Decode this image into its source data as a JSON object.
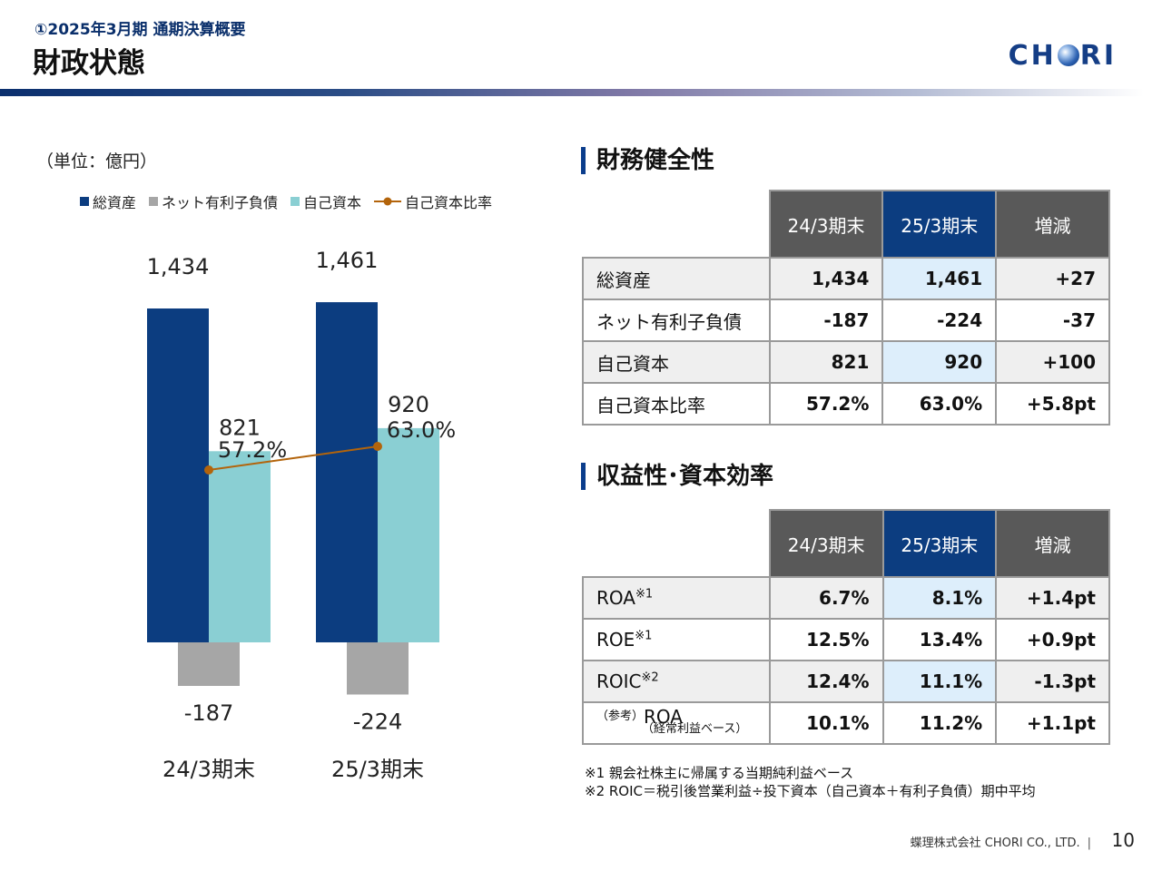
{
  "header": {
    "subtitle": "①2025年3月期 通期決算概要",
    "title": "財政状態",
    "logo_pre": "CH",
    "logo_post": "RI"
  },
  "chart": {
    "unit": "（単位：億円）",
    "legend": [
      "総資産",
      "ネット有利子負債",
      "自己資本",
      "自己資本比率"
    ]
  },
  "chart_data": {
    "type": "bar",
    "categories": [
      "24/3期末",
      "25/3期末"
    ],
    "series": [
      {
        "name": "総資産",
        "values": [
          1434,
          1461
        ],
        "labels": [
          "1,434",
          "1,461"
        ],
        "color": "#0c3d80"
      },
      {
        "name": "ネット有利子負債",
        "values": [
          -187,
          -224
        ],
        "labels": [
          "-187",
          "-224"
        ],
        "color": "#a6a6a6"
      },
      {
        "name": "自己資本",
        "values": [
          821,
          920
        ],
        "labels": [
          "821",
          "920"
        ],
        "color": "#8acfd3"
      },
      {
        "name": "自己資本比率",
        "type": "line",
        "values": [
          57.2,
          63.0
        ],
        "labels": [
          "57.2%",
          "63.0%"
        ],
        "color": "#b3640b"
      }
    ]
  },
  "sections": {
    "financial_health": "財務健全性",
    "profitability": "収益性･資本効率"
  },
  "table_headers": [
    "24/3期末",
    "25/3期末",
    "増減"
  ],
  "table1": [
    {
      "label": "総資産",
      "prev": "1,434",
      "cur": "1,461",
      "diff": "+27"
    },
    {
      "label": "ネット有利子負債",
      "prev": "-187",
      "cur": "-224",
      "diff": "-37"
    },
    {
      "label": "自己資本",
      "prev": "821",
      "cur": "920",
      "diff": "+100"
    },
    {
      "label": "自己資本比率",
      "prev": "57.2%",
      "cur": "63.0%",
      "diff": "+5.8pt"
    }
  ],
  "table2": [
    {
      "label": "ROA",
      "sup": "※1",
      "prev": "6.7%",
      "cur": "8.1%",
      "diff": "+1.4pt"
    },
    {
      "label": "ROE",
      "sup": "※1",
      "prev": "12.5%",
      "cur": "13.4%",
      "diff": "+0.9pt"
    },
    {
      "label": "ROIC",
      "sup": "※2",
      "prev": "12.4%",
      "cur": "11.1%",
      "diff": "-1.3pt"
    },
    {
      "pre": "（参考）",
      "label": "ROA",
      "note": "（経常利益ベース）",
      "prev": "10.1%",
      "cur": "11.2%",
      "diff": "+1.1pt"
    }
  ],
  "notes": [
    "※1 親会社株主に帰属する当期純利益ベース",
    "※2 ROIC＝税引後営業利益÷投下資本（自己資本＋有利子負債）期中平均"
  ],
  "footer": {
    "company": "蝶理株式会社 CHORI CO., LTD.",
    "separator": "|",
    "page": "10"
  }
}
